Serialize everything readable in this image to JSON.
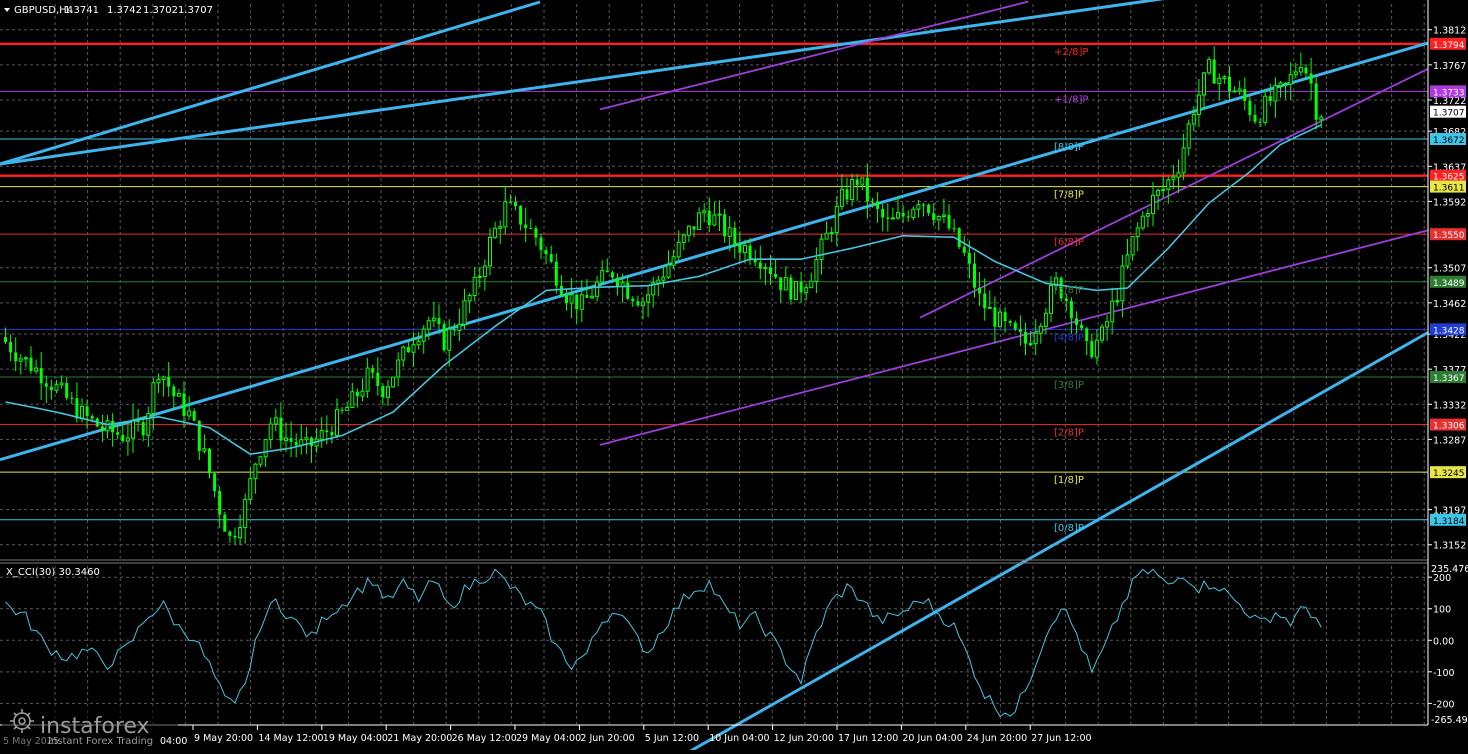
{
  "chart_data": [
    {
      "type": "candlestick",
      "symbol_header": "GBPUSD,H4",
      "ohlc_header": [
        "1.3741",
        "1.3742",
        "1.3702",
        "1.3707"
      ],
      "ylim": [
        1.3135,
        1.3845
      ],
      "y_ticks": [
        "1.3812",
        "1.3767",
        "1.3722",
        "1.3682",
        "1.3637",
        "1.3592",
        "1.3507",
        "1.3462",
        "1.3422",
        "1.3377",
        "1.3332",
        "1.3287",
        "1.3197",
        "1.3152"
      ],
      "x_ticks": [
        "9 May 20:00",
        "14 May 12:00",
        "19 May 04:00",
        "21 May 20:00",
        "26 May 12:00",
        "29 May 04:00",
        "2 Jun 20:00",
        "5 Jun 12:00",
        "10 Jun 04:00",
        "12 Jun 20:00",
        "17 Jun 12:00",
        "20 Jun 04:00",
        "24 Jun 20:00",
        "27 Jun 12:00"
      ],
      "price_path": [
        [
          0,
          1.3418
        ],
        [
          4,
          1.3392
        ],
        [
          8,
          1.3371
        ],
        [
          12,
          1.3345
        ],
        [
          16,
          1.3318
        ],
        [
          20,
          1.33
        ],
        [
          24,
          1.3292
        ],
        [
          28,
          1.3306
        ],
        [
          31,
          1.338
        ],
        [
          34,
          1.3342
        ],
        [
          37,
          1.3318
        ],
        [
          40,
          1.3264
        ],
        [
          43,
          1.3196
        ],
        [
          45,
          1.3158
        ],
        [
          48,
          1.3205
        ],
        [
          50,
          1.3262
        ],
        [
          53,
          1.331
        ],
        [
          56,
          1.3288
        ],
        [
          60,
          1.3275
        ],
        [
          63,
          1.3292
        ],
        [
          66,
          1.3312
        ],
        [
          69,
          1.3336
        ],
        [
          72,
          1.3368
        ],
        [
          75,
          1.3352
        ],
        [
          78,
          1.3383
        ],
        [
          81,
          1.342
        ],
        [
          84,
          1.344
        ],
        [
          87,
          1.3412
        ],
        [
          90,
          1.3445
        ],
        [
          93,
          1.3483
        ],
        [
          96,
          1.3541
        ],
        [
          99,
          1.3586
        ],
        [
          102,
          1.3569
        ],
        [
          105,
          1.3546
        ],
        [
          108,
          1.3509
        ],
        [
          111,
          1.3472
        ],
        [
          114,
          1.3458
        ],
        [
          117,
          1.3486
        ],
        [
          120,
          1.3502
        ],
        [
          123,
          1.3478
        ],
        [
          126,
          1.3465
        ],
        [
          129,
          1.3493
        ],
        [
          132,
          1.3522
        ],
        [
          135,
          1.3554
        ],
        [
          138,
          1.3581
        ],
        [
          141,
          1.3562
        ],
        [
          144,
          1.3538
        ],
        [
          147,
          1.353
        ],
        [
          150,
          1.3514
        ],
        [
          153,
          1.3488
        ],
        [
          156,
          1.3475
        ],
        [
          159,
          1.3502
        ],
        [
          162,
          1.3548
        ],
        [
          165,
          1.3596
        ],
        [
          168,
          1.3621
        ],
        [
          171,
          1.3583
        ],
        [
          174,
          1.3562
        ],
        [
          177,
          1.3574
        ],
        [
          180,
          1.3598
        ],
        [
          183,
          1.3579
        ],
        [
          186,
          1.3557
        ],
        [
          189,
          1.3521
        ],
        [
          192,
          1.3465
        ],
        [
          195,
          1.3442
        ],
        [
          198,
          1.3424
        ],
        [
          201,
          1.341
        ],
        [
          204,
          1.3447
        ],
        [
          207,
          1.3488
        ],
        [
          210,
          1.3455
        ],
        [
          213,
          1.3398
        ],
        [
          216,
          1.342
        ],
        [
          219,
          1.3478
        ],
        [
          222,
          1.3542
        ],
        [
          225,
          1.3588
        ],
        [
          228,
          1.3608
        ],
        [
          231,
          1.3641
        ],
        [
          234,
          1.3715
        ],
        [
          237,
          1.3762
        ],
        [
          240,
          1.3744
        ],
        [
          243,
          1.3728
        ],
        [
          246,
          1.37
        ],
        [
          249,
          1.3722
        ],
        [
          252,
          1.3738
        ],
        [
          255,
          1.3776
        ],
        [
          257,
          1.3741
        ],
        [
          258,
          1.3707
        ]
      ],
      "ma_path": [
        [
          0,
          1.3335
        ],
        [
          10,
          1.3322
        ],
        [
          20,
          1.3306
        ],
        [
          30,
          1.3316
        ],
        [
          40,
          1.3302
        ],
        [
          48,
          1.3268
        ],
        [
          56,
          1.3276
        ],
        [
          66,
          1.3292
        ],
        [
          76,
          1.3322
        ],
        [
          86,
          1.3382
        ],
        [
          96,
          1.3432
        ],
        [
          106,
          1.3478
        ],
        [
          116,
          1.3482
        ],
        [
          126,
          1.3484
        ],
        [
          136,
          1.3496
        ],
        [
          146,
          1.3518
        ],
        [
          156,
          1.3518
        ],
        [
          166,
          1.3532
        ],
        [
          176,
          1.3548
        ],
        [
          186,
          1.3546
        ],
        [
          194,
          1.3515
        ],
        [
          204,
          1.3487
        ],
        [
          214,
          1.3478
        ],
        [
          220,
          1.3481
        ],
        [
          228,
          1.3532
        ],
        [
          236,
          1.359
        ],
        [
          244,
          1.363
        ],
        [
          250,
          1.3665
        ],
        [
          258,
          1.369
        ]
      ],
      "channels": [
        {
          "name": "outer-upper",
          "color": "#3fb4ec",
          "y_start": 1.364,
          "y_end": 1.39
        },
        {
          "name": "middle",
          "color": "#3fb4ec",
          "y_start": 1.3261,
          "y_end": 1.3795
        },
        {
          "name": "outer-lower",
          "color": "#3fb4ec",
          "y_start": 1.288,
          "y_end": 1.3424
        },
        {
          "name": "inner-upper",
          "color": "#9a3fd8",
          "x_from": 1.371,
          "x_to": 1.3848
        },
        {
          "name": "inner-mid",
          "color": "#9a3fd8",
          "y_start": 1.3242,
          "y_end": 1.3762
        },
        {
          "name": "inner-lower",
          "color": "#9a3fd8",
          "x_from": 1.328,
          "x_to": 1.3555
        }
      ],
      "murrey_levels": [
        {
          "label": "+2/8]P",
          "value": "1.3794",
          "num": 1.3794,
          "color": "#ff2020",
          "bold": true
        },
        {
          "label": "+1/8]P",
          "value": "1.3733",
          "num": 1.3733,
          "color": "#b03ae0",
          "bold": false
        },
        {
          "label": "[8/8]P",
          "value": "1.3672",
          "num": 1.3672,
          "color": "#3ec6e8",
          "bold": false
        },
        {
          "label": "",
          "value": "1.3625",
          "num": 1.3625,
          "color": "#ff2020",
          "bold": true
        },
        {
          "label": "[7/8]P",
          "value": "1.3611",
          "num": 1.3611,
          "color": "#e6e64a",
          "bold": false
        },
        {
          "label": "[6/8]P",
          "value": "1.3550",
          "num": 1.355,
          "color": "#e83030",
          "bold": false
        },
        {
          "label": "[5/8]P",
          "value": "1.3489",
          "num": 1.3489,
          "color": "#2e7d32",
          "bold": false
        },
        {
          "label": "[4/8]P",
          "value": "1.3428",
          "num": 1.3428,
          "color": "#1f3ed8",
          "bold": false
        },
        {
          "label": "[3/8]P",
          "value": "1.3367",
          "num": 1.3367,
          "color": "#2e7d32",
          "bold": false
        },
        {
          "label": "[2/8]P",
          "value": "1.3306",
          "num": 1.3306,
          "color": "#e83030",
          "bold": false
        },
        {
          "label": "[1/8]P",
          "value": "1.3245",
          "num": 1.3245,
          "color": "#e6e64a",
          "bold": false
        },
        {
          "label": "[0/8]P",
          "value": "1.3184",
          "num": 1.3184,
          "color": "#3ec6e8",
          "bold": false
        }
      ],
      "current_price": {
        "value": "1.3707",
        "num": 1.3707
      },
      "colors": {
        "bull": "#00ff00",
        "bear": "#00ff00",
        "ma": "#45c4dd",
        "grid": "#5a5a5a",
        "axis": "#ffffff"
      }
    },
    {
      "type": "line",
      "name": "X_CCI(30) 30.3460",
      "ylim": [
        -265.4,
        235.5
      ],
      "max_label": "235.4766",
      "min_label": "-265.4996",
      "y_ticks": [
        "200",
        "100",
        "0.00",
        "-100",
        "-200"
      ],
      "path": [
        [
          0,
          115
        ],
        [
          4,
          72
        ],
        [
          8,
          -20
        ],
        [
          12,
          -55
        ],
        [
          16,
          -32
        ],
        [
          20,
          -75
        ],
        [
          24,
          -22
        ],
        [
          28,
          82
        ],
        [
          31,
          110
        ],
        [
          34,
          40
        ],
        [
          37,
          8
        ],
        [
          40,
          -80
        ],
        [
          43,
          -190
        ],
        [
          45,
          -210
        ],
        [
          48,
          -85
        ],
        [
          50,
          52
        ],
        [
          53,
          125
        ],
        [
          56,
          70
        ],
        [
          60,
          8
        ],
        [
          63,
          82
        ],
        [
          66,
          112
        ],
        [
          69,
          158
        ],
        [
          72,
          192
        ],
        [
          75,
          122
        ],
        [
          78,
          178
        ],
        [
          81,
          132
        ],
        [
          84,
          188
        ],
        [
          87,
          102
        ],
        [
          90,
          158
        ],
        [
          93,
          196
        ],
        [
          96,
          215
        ],
        [
          99,
          170
        ],
        [
          102,
          122
        ],
        [
          105,
          82
        ],
        [
          108,
          -22
        ],
        [
          111,
          -78
        ],
        [
          114,
          -42
        ],
        [
          117,
          62
        ],
        [
          120,
          102
        ],
        [
          123,
          22
        ],
        [
          126,
          -38
        ],
        [
          129,
          42
        ],
        [
          132,
          112
        ],
        [
          135,
          162
        ],
        [
          138,
          182
        ],
        [
          141,
          102
        ],
        [
          144,
          52
        ],
        [
          147,
          72
        ],
        [
          150,
          12
        ],
        [
          153,
          -62
        ],
        [
          156,
          -128
        ],
        [
          159,
          22
        ],
        [
          162,
          122
        ],
        [
          165,
          168
        ],
        [
          168,
          130
        ],
        [
          171,
          62
        ],
        [
          174,
          72
        ],
        [
          177,
          100
        ],
        [
          180,
          132
        ],
        [
          183,
          84
        ],
        [
          186,
          42
        ],
        [
          189,
          -62
        ],
        [
          192,
          -172
        ],
        [
          195,
          -222
        ],
        [
          198,
          -228
        ],
        [
          201,
          -112
        ],
        [
          204,
          22
        ],
        [
          207,
          112
        ],
        [
          210,
          22
        ],
        [
          213,
          -105
        ],
        [
          216,
          -8
        ],
        [
          219,
          112
        ],
        [
          222,
          208
        ],
        [
          225,
          222
        ],
        [
          228,
          168
        ],
        [
          231,
          212
        ],
        [
          234,
          168
        ],
        [
          237,
          182
        ],
        [
          240,
          140
        ],
        [
          243,
          100
        ],
        [
          246,
          52
        ],
        [
          249,
          88
        ],
        [
          252,
          58
        ],
        [
          255,
          105
        ],
        [
          257,
          72
        ],
        [
          258,
          30
        ]
      ],
      "color": "#45c4dd"
    }
  ],
  "watermark": {
    "brand": "instaforex",
    "tagline": "Instant Forex Trading",
    "left_tick_1": "5 May 2025",
    "left_tick_2": "04:00"
  }
}
